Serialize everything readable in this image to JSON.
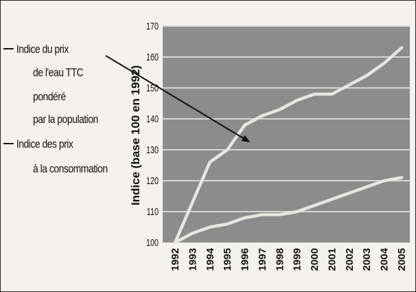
{
  "chart_data": {
    "type": "line",
    "ylabel": "Indice (base 100 en 1992)",
    "xlabel": "",
    "ylim": [
      100,
      170
    ],
    "yticks": [
      100,
      110,
      120,
      130,
      140,
      150,
      160,
      170
    ],
    "x": [
      "1992",
      "1993",
      "1994",
      "1995",
      "1996",
      "1997",
      "1998",
      "1999",
      "2000",
      "2001",
      "2002",
      "2003",
      "2004",
      "2005"
    ],
    "grid": true,
    "legend_position": "left",
    "series": [
      {
        "name": "Indice du prix de l'eau TTC pondéré par la population",
        "legend_lines": [
          "Indice du prix",
          "de l'eau TTC",
          "pondéré",
          "par la population"
        ],
        "values": [
          100,
          113,
          126,
          130,
          138,
          141,
          143,
          146,
          148,
          148,
          151,
          154,
          158,
          163
        ],
        "color": "#e8e6e1"
      },
      {
        "name": "Indice des prix à la consommation",
        "legend_lines": [
          "Indice des prix",
          "à la consommation"
        ],
        "values": [
          100,
          103,
          105,
          106,
          108,
          109,
          109,
          110,
          112,
          114,
          116,
          118,
          120,
          121
        ],
        "color": "#e8e6e1"
      }
    ],
    "annotation": {
      "type": "arrow",
      "target_series": 0,
      "target_x": "1996"
    },
    "colors": {
      "plot_background": "#8c8c8c",
      "gridline": "#d8d6d2",
      "text": "#111111",
      "arrow": "#111111"
    }
  }
}
